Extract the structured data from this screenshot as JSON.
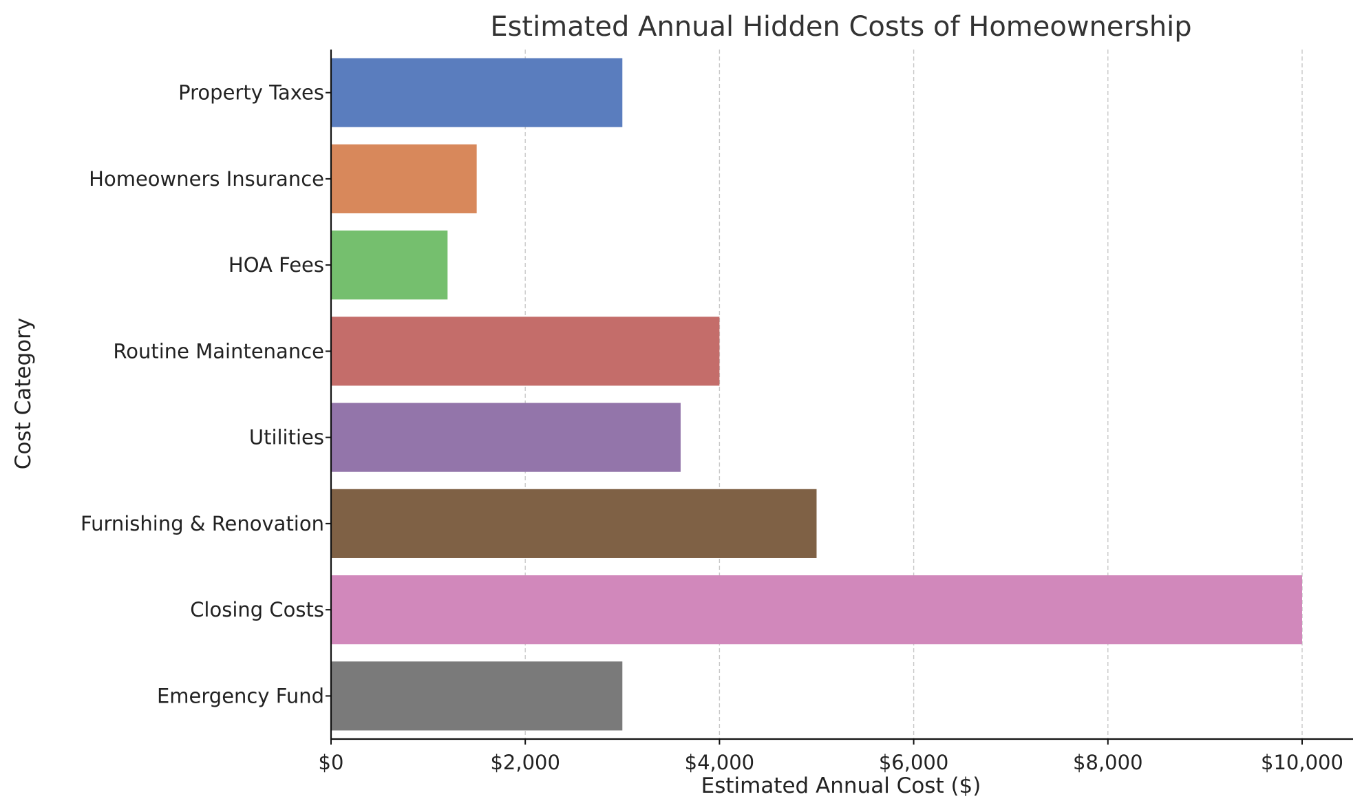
{
  "chart_data": {
    "type": "bar",
    "orientation": "horizontal",
    "title": "Estimated Annual Hidden Costs of Homeownership",
    "xlabel": "Estimated Annual Cost ($)",
    "ylabel": "Cost Category",
    "xlim": [
      0,
      10500
    ],
    "x_ticks": [
      0,
      2000,
      4000,
      6000,
      8000,
      10000
    ],
    "x_tick_labels": [
      "$0",
      "$2,000",
      "$4,000",
      "$6,000",
      "$8,000",
      "$10,000"
    ],
    "grid": {
      "x": true,
      "y": false,
      "style": "dashed"
    },
    "legend": "none",
    "categories": [
      "Property Taxes",
      "Homeowners Insurance",
      "HOA Fees",
      "Routine Maintenance",
      "Utilities",
      "Furnishing & Renovation",
      "Closing Costs",
      "Emergency Fund"
    ],
    "values": [
      3000,
      1500,
      1200,
      4000,
      3600,
      5000,
      10000,
      3000
    ],
    "colors": [
      "#5a7dbe",
      "#d8885b",
      "#75bf6e",
      "#c46d6a",
      "#9375aa",
      "#7f6145",
      "#d188bb",
      "#7a7a7a"
    ]
  }
}
